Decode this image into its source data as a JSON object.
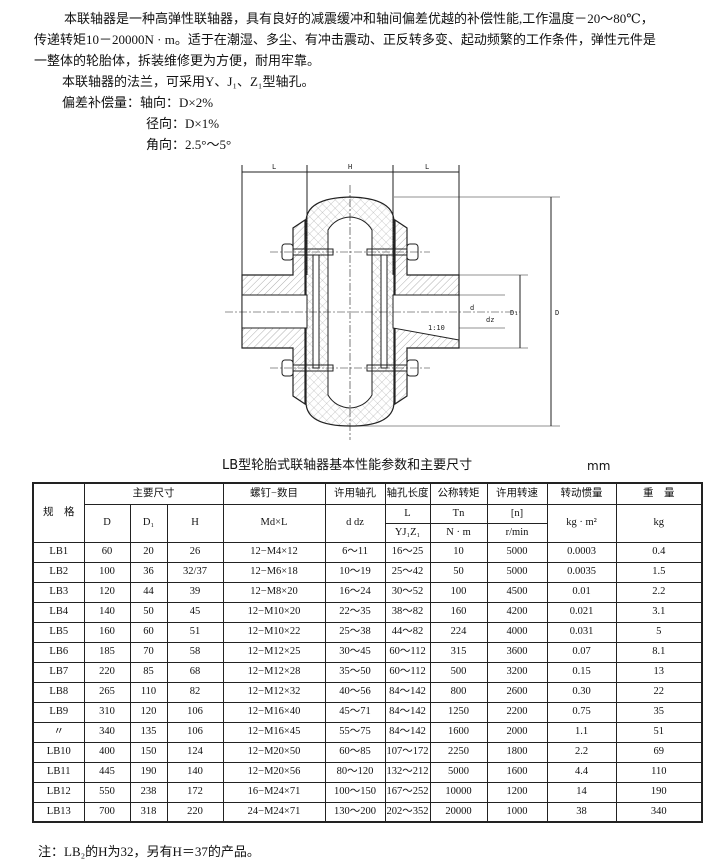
{
  "intro": {
    "line1": "本联轴器是一种高弹性联轴器，具有良好的减震缓冲和轴间偏差优越的补偿性能,工作温度－20～80℃，",
    "line2": "传递转矩10－20000N · m。适于在潮湿、多尘、有冲击震动、正反转多变、起动频繁的工作条件，弹性元件是",
    "line3": "一整体的轮胎体，拆装维修更为方便，耐用牢靠。",
    "line4": "本联轴器的法兰，可采用Y、J₁、Z₁型轴孔。",
    "line5": "偏差补偿量：轴向：D×2%",
    "line6": "径向：D×1%",
    "line7": "角向：2.5°～5°"
  },
  "drawing": {
    "dim_L": "L",
    "dim_H": "H",
    "dim_d": "d",
    "dim_dz": "dz",
    "dim_D1": "D₁",
    "dim_D": "D",
    "taper": "1:10"
  },
  "table": {
    "title": "LB型轮胎式联轴器基本性能参数和主要尺寸",
    "unit": "mm",
    "headers": {
      "spec": "规　格",
      "main_dims": "主要尺寸",
      "D": "D",
      "D1": "D₁",
      "H": "H",
      "bolt": "螺钉−数目",
      "bolt_sub": "Md×L",
      "bore": "许用轴孔",
      "bore_sub": "d  dz",
      "len": "轴孔长度",
      "len_sub1": "L",
      "len_sub2": "YJ₁Z₁",
      "torque": "公称转矩",
      "torque_sub1": "Tn",
      "torque_sub2": "N · m",
      "speed": "许用转速",
      "speed_sub1": "[n]",
      "speed_sub2": "r/min",
      "inertia": "转动惯量",
      "inertia_sub": "kg · m²",
      "weight": "重　量",
      "weight_sub": "kg"
    },
    "rows": [
      [
        "LB1",
        "60",
        "20",
        "26",
        "12−M4×12",
        "6～11",
        "16～25",
        "10",
        "5000",
        "0.0003",
        "0.4"
      ],
      [
        "LB2",
        "100",
        "36",
        "32/37",
        "12−M6×18",
        "10～19",
        "25～42",
        "50",
        "5000",
        "0.0035",
        "1.5"
      ],
      [
        "LB3",
        "120",
        "44",
        "39",
        "12−M8×20",
        "16～24",
        "30～52",
        "100",
        "4500",
        "0.01",
        "2.2"
      ],
      [
        "LB4",
        "140",
        "50",
        "45",
        "12−M10×20",
        "22～35",
        "38～82",
        "160",
        "4200",
        "0.021",
        "3.1"
      ],
      [
        "LB5",
        "160",
        "60",
        "51",
        "12−M10×22",
        "25～38",
        "44～82",
        "224",
        "4000",
        "0.031",
        "5"
      ],
      [
        "LB6",
        "185",
        "70",
        "58",
        "12−M12×25",
        "30～45",
        "60～112",
        "315",
        "3600",
        "0.07",
        "8.1"
      ],
      [
        "LB7",
        "220",
        "85",
        "68",
        "12−M12×28",
        "35～50",
        "60～112",
        "500",
        "3200",
        "0.15",
        "13"
      ],
      [
        "LB8",
        "265",
        "110",
        "82",
        "12−M12×32",
        "40～56",
        "84～142",
        "800",
        "2600",
        "0.30",
        "22"
      ],
      [
        "LB9",
        "310",
        "120",
        "106",
        "12−M16×40",
        "45～71",
        "84～142",
        "1250",
        "2200",
        "0.75",
        "35"
      ],
      [
        "〃",
        "340",
        "135",
        "106",
        "12−M16×45",
        "55～75",
        "84～142",
        "1600",
        "2000",
        "1.1",
        "51"
      ],
      [
        "LB10",
        "400",
        "150",
        "124",
        "12−M20×50",
        "60～85",
        "107～172",
        "2250",
        "1800",
        "2.2",
        "69"
      ],
      [
        "LB11",
        "445",
        "190",
        "140",
        "12−M20×56",
        "80～120",
        "132～212",
        "5000",
        "1600",
        "4.4",
        "110"
      ],
      [
        "LB12",
        "550",
        "238",
        "172",
        "16−M24×71",
        "100～150",
        "167～252",
        "10000",
        "1200",
        "14",
        "190"
      ],
      [
        "LB13",
        "700",
        "318",
        "220",
        "24−M24×71",
        "130～200",
        "202～352",
        "20000",
        "1000",
        "38",
        "340"
      ]
    ]
  },
  "note": "注：LB₂的H为32，另有H＝37的产品。"
}
